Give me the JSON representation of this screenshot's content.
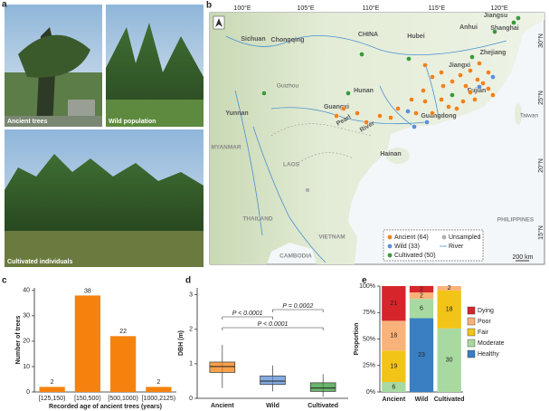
{
  "panel_labels": [
    "a",
    "b",
    "c",
    "d",
    "e"
  ],
  "photos": {
    "captions": [
      "Ancient trees",
      "Wild population",
      "Cultivated individuals"
    ]
  },
  "map": {
    "lon_ticks": [
      "100°E",
      "105°E",
      "110°E",
      "115°E",
      "120°E"
    ],
    "lat_ticks": [
      "30°N",
      "25°N",
      "20°N",
      "15°N"
    ],
    "places": [
      "Sichuan",
      "Chongqing",
      "CHINA",
      "Hubei",
      "Anhui",
      "Jiangsu",
      "Shanghai",
      "Zhejiang",
      "Jiangxi",
      "Hunan",
      "Guizhou",
      "Yunnan",
      "Guangxi",
      "Fujian",
      "Guangdong",
      "Taiwan",
      "Hainan",
      "Pearl",
      "River"
    ],
    "countries": [
      "MYANMAR",
      "LAOS",
      "THAILAND",
      "VIETNAM",
      "CAMBODIA",
      "PHILIPPINES"
    ],
    "legend": [
      "Ancient (64)",
      "Wild (33)",
      "Cultivated (50)",
      "Unsampled",
      "River"
    ],
    "scale": "200 km"
  },
  "chart_data": [
    {
      "type": "bar",
      "categories": [
        "[125,150)",
        "[150,500)",
        "[500,1000)",
        "[1000,2125)"
      ],
      "values": [
        2,
        38,
        22,
        2
      ],
      "color": "#f5820d",
      "ylim": [
        0,
        41
      ],
      "yticks": [
        0,
        10,
        20,
        30,
        40
      ],
      "xlabel": "Recorded age of ancient trees (years)",
      "ylabel": "Number of trees"
    },
    {
      "type": "box",
      "categories": [
        "Ancient",
        "Wild",
        "Cultivated"
      ],
      "boxes": [
        {
          "min": 0.3,
          "q1": 0.75,
          "median": 0.92,
          "q3": 1.05,
          "max": 1.55,
          "color": "#f5820d"
        },
        {
          "min": 0.2,
          "q1": 0.4,
          "median": 0.5,
          "q3": 0.65,
          "max": 0.95,
          "color": "#5b8fd6"
        },
        {
          "min": 0.05,
          "q1": 0.2,
          "median": 0.3,
          "q3": 0.45,
          "max": 0.7,
          "color": "#3a9a3a"
        }
      ],
      "ylim": [
        0,
        3.2
      ],
      "yticks": [
        0,
        1,
        2,
        3
      ],
      "ylabel": "DBH (m)",
      "annotations": [
        "P < 0.0001",
        "P = 0.0002",
        "P < 0.0001"
      ]
    },
    {
      "type": "stacked_bar",
      "categories": [
        "Ancient",
        "Wild",
        "Cultivated"
      ],
      "series": [
        {
          "name": "Healthy",
          "color": "#3a7fc1",
          "values": [
            0,
            69.7,
            0
          ],
          "counts": [
            null,
            23,
            null
          ]
        },
        {
          "name": "Moderate",
          "color": "#a8d9a0",
          "values": [
            9.4,
            18.2,
            60
          ],
          "counts": [
            6,
            6,
            30
          ]
        },
        {
          "name": "Fair",
          "color": "#f2c418",
          "values": [
            29.7,
            0,
            36
          ],
          "counts": [
            19,
            null,
            18
          ]
        },
        {
          "name": "Poor",
          "color": "#f9b27a",
          "values": [
            28.1,
            6.1,
            4
          ],
          "counts": [
            18,
            2,
            2
          ]
        },
        {
          "name": "Dying",
          "color": "#d7262b",
          "values": [
            32.8,
            6.1,
            0
          ],
          "counts": [
            21,
            2,
            null
          ]
        }
      ],
      "ylim": [
        0,
        100
      ],
      "yticks": [
        {
          "value": 0,
          "label": "0%"
        },
        {
          "value": 25,
          "label": "25%"
        },
        {
          "value": 50,
          "label": "50%"
        },
        {
          "value": 75,
          "label": "75%"
        },
        {
          "value": 100,
          "label": "100%"
        }
      ],
      "ylabel": "Proportion"
    }
  ]
}
